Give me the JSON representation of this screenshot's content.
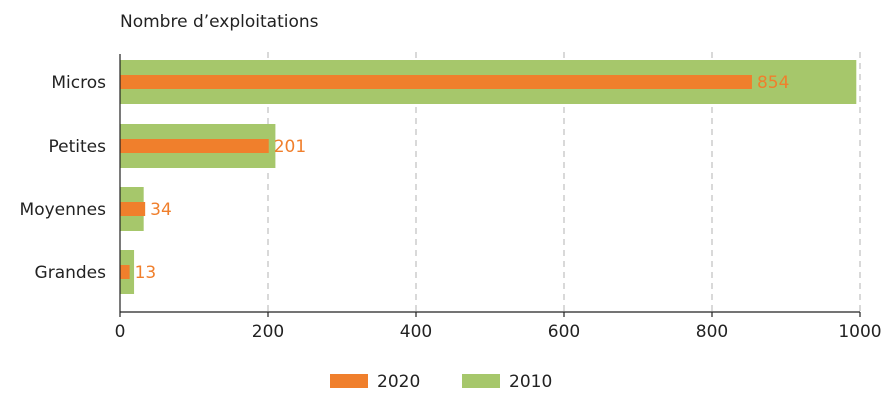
{
  "chart_data": {
    "type": "bar",
    "orientation": "horizontal",
    "title": "",
    "ylabel": "Nombre d’exploitations",
    "xlabel": "",
    "categories": [
      "Micros",
      "Petites",
      "Moyennes",
      "Grandes"
    ],
    "series": [
      {
        "name": "2010",
        "values": [
          995,
          210,
          32,
          19
        ]
      },
      {
        "name": "2020",
        "values": [
          854,
          201,
          34,
          13
        ]
      }
    ],
    "data_labels": [
      "854",
      "201",
      "34",
      "13"
    ],
    "xlim": [
      0,
      1000
    ],
    "x_ticks": [
      0,
      200,
      400,
      600,
      800,
      1000
    ],
    "x_tick_labels": [
      "0",
      "200",
      "400",
      "600",
      "800",
      "1000"
    ],
    "grid": "vertical dashed",
    "legend_position": "bottom",
    "legend": [
      "2020",
      "2010"
    ],
    "colors": {
      "2010": "#a6c76b",
      "2020": "#f07f2c",
      "data_label": "#f07f2c",
      "axis": "#222222",
      "grid": "#b3b3b3"
    }
  }
}
